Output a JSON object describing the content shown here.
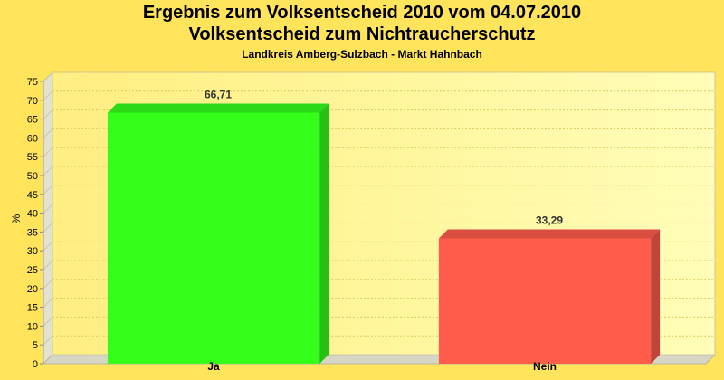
{
  "chart_data": {
    "type": "bar",
    "title": "Ergebnis zum Volksentscheid 2010 vom 04.07.2010",
    "subtitle": "Volksentscheid zum Nichtraucherschutz",
    "caption": "Landkreis Amberg-Sulzbach - Markt Hahnbach",
    "xlabel": "",
    "ylabel": "%",
    "ylim": [
      0,
      75
    ],
    "yticks": [
      0,
      5,
      10,
      15,
      20,
      25,
      30,
      35,
      40,
      45,
      50,
      55,
      60,
      65,
      70,
      75
    ],
    "categories": [
      "Ja",
      "Nein"
    ],
    "values": [
      66.71,
      33.29
    ],
    "value_labels": [
      "66,71",
      "33,29"
    ],
    "colors": [
      "#33FF1A",
      "#FF5C4C"
    ],
    "grid": true,
    "legend": "none"
  }
}
